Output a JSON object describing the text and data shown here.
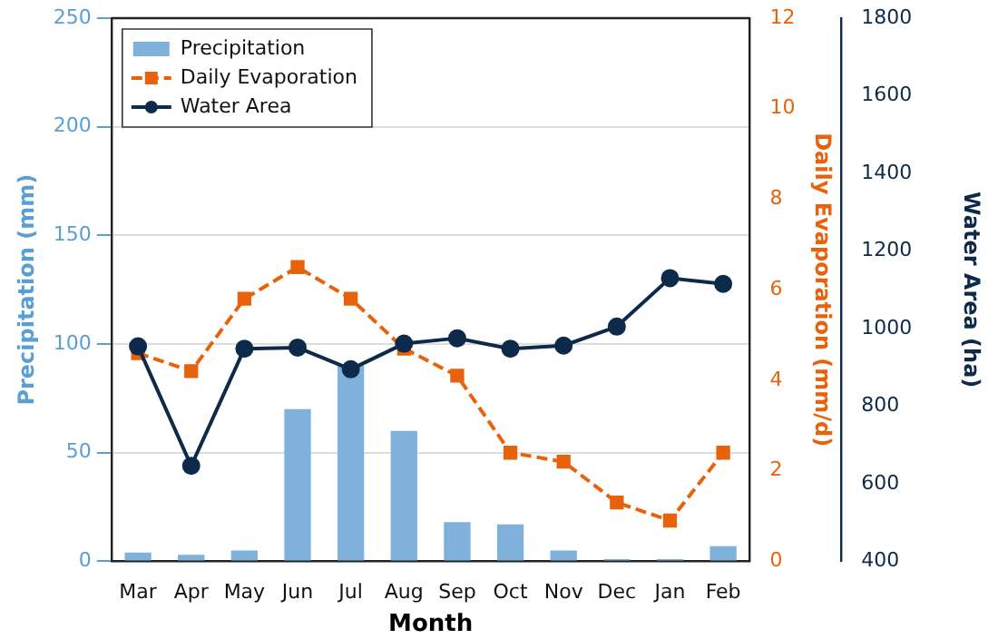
{
  "chart_data": {
    "type": "bar",
    "xlabel": "Month",
    "ylabel": "Precipitation (mm)",
    "y2label": "Daily Evaporation (mm/d)",
    "y3label": "Water Area (ha)",
    "categories": [
      "Mar",
      "Apr",
      "May",
      "Jun",
      "Jul",
      "Aug",
      "Sep",
      "Oct",
      "Nov",
      "Dec",
      "Jan",
      "Feb"
    ],
    "series": [
      {
        "name": "Precipitation",
        "color": "#7fb1da",
        "values": [
          4,
          3,
          5,
          70,
          90,
          60,
          18,
          17,
          5,
          1,
          1,
          7
        ]
      },
      {
        "name": "Daily Evaporation",
        "type": "line",
        "axis": "y2",
        "color": "#e8620c",
        "marker": "square",
        "line_style": "dashed",
        "values": [
          4.6,
          4.2,
          5.8,
          6.5,
          5.8,
          4.7,
          4.1,
          2.4,
          2.2,
          1.3,
          0.9,
          2.4
        ]
      },
      {
        "name": "Water Area",
        "type": "line",
        "axis": "y3",
        "color": "#0d2a4a",
        "marker": "circle",
        "line_style": "solid",
        "values": [
          954,
          646,
          948,
          951,
          895,
          961,
          975,
          948,
          956,
          1005,
          1130,
          1115
        ]
      }
    ],
    "ylim": [
      0,
      250
    ],
    "yticks": [
      0,
      50,
      100,
      150,
      200,
      250
    ],
    "y2lim": [
      0,
      12
    ],
    "y2ticks": [
      0,
      2,
      4,
      6,
      8,
      10,
      12
    ],
    "y3lim": [
      400,
      1800
    ],
    "y3ticks": [
      400,
      600,
      800,
      1000,
      1200,
      1400,
      1600,
      1800
    ],
    "grid": "y",
    "legend": "top left"
  }
}
